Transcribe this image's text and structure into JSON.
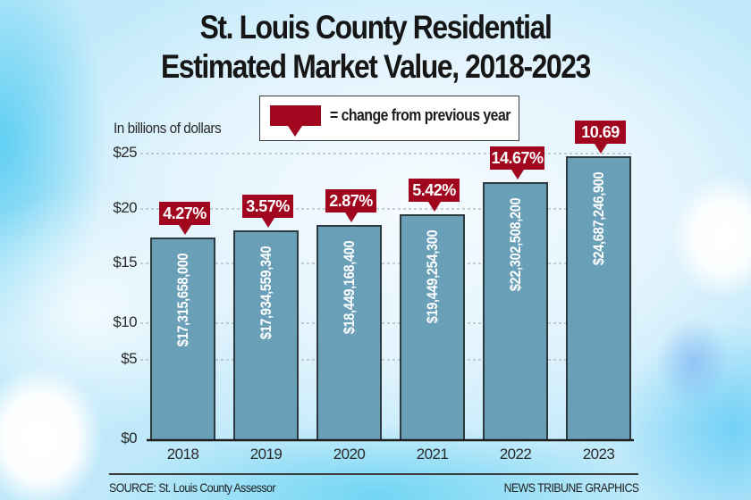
{
  "chart_data": {
    "type": "bar",
    "title": "St. Louis County Residential Estimated Market Value, 2018-2023",
    "title_lines": [
      "St. Louis County Residential",
      "Estimated Market Value, 2018-2023"
    ],
    "ylabel": "In billions of dollars",
    "xlabel": "",
    "categories": [
      "2018",
      "2019",
      "2020",
      "2021",
      "2022",
      "2023"
    ],
    "values": [
      17315658000,
      17934559340,
      18449168400,
      19449254300,
      22302508200,
      24687246900
    ],
    "value_labels": [
      "$17,315,658,000",
      "$17,934,559,340",
      "$18,449,168,400",
      "$19,449,254,300",
      "$22,302,508,200",
      "$24,687,246,900"
    ],
    "change_labels": [
      "4.27%",
      "3.57%",
      "2.87%",
      "5.42%",
      "14.67%",
      "10.69"
    ],
    "y_ticks": [
      0,
      5,
      10,
      15,
      20,
      25
    ],
    "y_tick_labels": [
      "$0",
      "$5",
      "$10",
      "$15",
      "$20",
      "$25"
    ],
    "ylim": [
      0,
      25
    ],
    "grid": true,
    "legend": {
      "placement": "top-center",
      "entries": [
        {
          "symbol": "red callout",
          "label": "= change from previous year"
        }
      ]
    },
    "colors": {
      "bar": "#6a9fb8",
      "bar_border": "#2d3a40",
      "callout": "#a0061e",
      "grid": "#9aa4aa"
    }
  },
  "footer": {
    "source": "SOURCE: St. Louis County Assessor",
    "credit": "NEWS TRIBUNE GRAPHICS"
  }
}
